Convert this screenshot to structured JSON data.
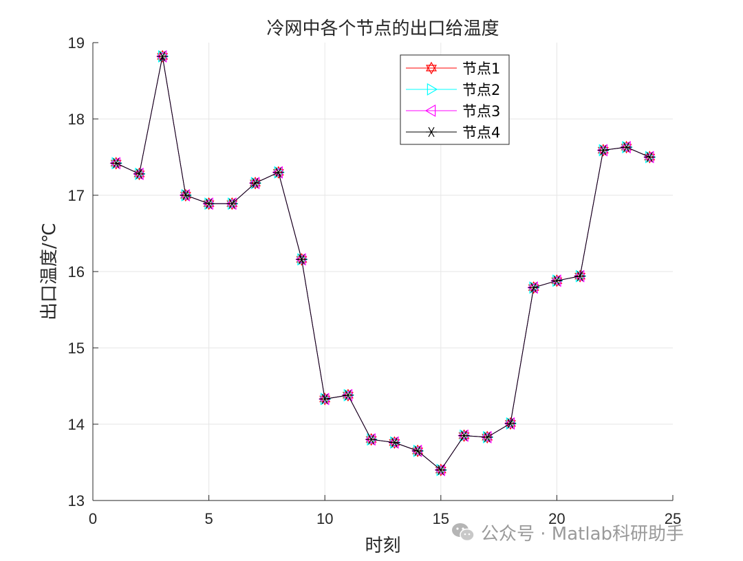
{
  "chart_data": {
    "type": "line",
    "title": "冷网中各个节点的出口给温度",
    "xlabel": "时刻",
    "ylabel": "出口温度/℃",
    "xlim": [
      0,
      25
    ],
    "ylim": [
      13,
      19
    ],
    "xticks": [
      0,
      5,
      10,
      15,
      20,
      25
    ],
    "yticks": [
      13,
      14,
      15,
      16,
      17,
      18,
      19
    ],
    "grid": true,
    "legend_position": "top-right",
    "x": [
      1,
      2,
      3,
      4,
      5,
      6,
      7,
      8,
      9,
      10,
      11,
      12,
      13,
      14,
      15,
      16,
      17,
      18,
      19,
      20,
      21,
      22,
      23,
      24
    ],
    "series": [
      {
        "name": "节点1",
        "color": "#ff0000",
        "marker": "hexagram",
        "values": [
          17.42,
          17.28,
          18.82,
          17.0,
          16.89,
          16.89,
          17.16,
          17.3,
          16.16,
          14.33,
          14.38,
          13.8,
          13.76,
          13.65,
          13.4,
          13.85,
          13.83,
          14.01,
          15.79,
          15.88,
          15.94,
          17.59,
          17.63,
          17.5
        ]
      },
      {
        "name": "节点2",
        "color": "#00ffff",
        "marker": "triangle-right",
        "values": [
          17.42,
          17.28,
          18.82,
          17.0,
          16.89,
          16.89,
          17.16,
          17.3,
          16.16,
          14.33,
          14.38,
          13.8,
          13.76,
          13.65,
          13.4,
          13.85,
          13.83,
          14.01,
          15.79,
          15.88,
          15.94,
          17.59,
          17.63,
          17.5
        ]
      },
      {
        "name": "节点3",
        "color": "#ff00ff",
        "marker": "triangle-left",
        "values": [
          17.42,
          17.28,
          18.82,
          17.0,
          16.89,
          16.89,
          17.16,
          17.3,
          16.16,
          14.33,
          14.38,
          13.8,
          13.76,
          13.65,
          13.4,
          13.85,
          13.83,
          14.01,
          15.79,
          15.88,
          15.94,
          17.59,
          17.63,
          17.5
        ]
      },
      {
        "name": "节点4",
        "color": "#000000",
        "marker": "asterisk",
        "values": [
          17.42,
          17.28,
          18.82,
          17.0,
          16.89,
          16.89,
          17.16,
          17.3,
          16.16,
          14.33,
          14.38,
          13.8,
          13.76,
          13.65,
          13.4,
          13.85,
          13.83,
          14.01,
          15.79,
          15.88,
          15.94,
          17.59,
          17.63,
          17.5
        ]
      }
    ]
  },
  "watermark": {
    "icon": "wechat-icon",
    "text": "公众号 · Matlab科研助手"
  }
}
